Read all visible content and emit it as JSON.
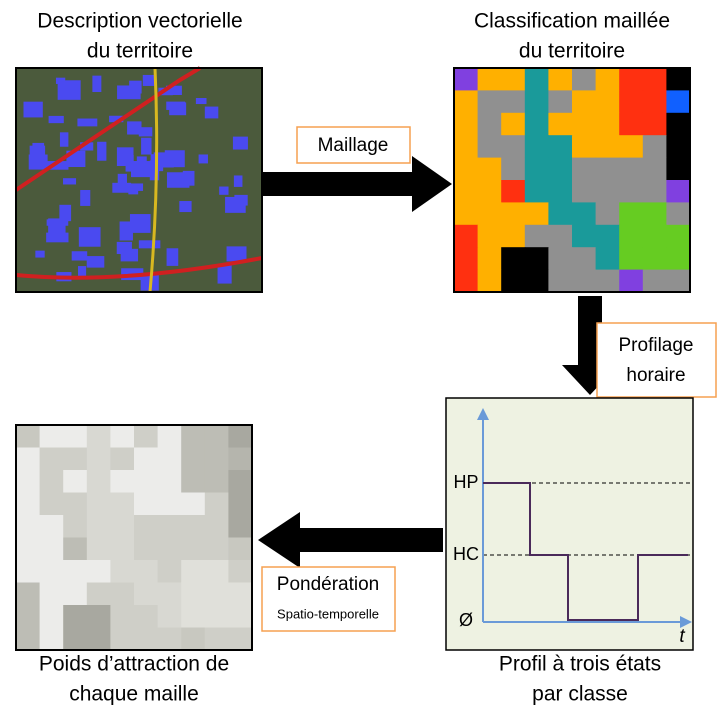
{
  "panels": {
    "vector": {
      "title": [
        "Description vectorielle",
        "du territoire"
      ]
    },
    "classification": {
      "title": [
        "Classification maillée",
        "du territoire"
      ]
    },
    "profile": {
      "title": [
        "Profil à trois états",
        "par classe"
      ],
      "levels": [
        "HP",
        "HC",
        "Ø"
      ],
      "axis": "t"
    },
    "weights": {
      "title": [
        "Poids d’attraction de",
        "chaque maille"
      ]
    }
  },
  "steps": {
    "meshing": {
      "label": "Maillage"
    },
    "profiling": {
      "label": [
        "Profilage",
        "horaire"
      ]
    },
    "weighting": {
      "label": "Pondération",
      "sublabel": "Spatio-temporelle"
    }
  }
}
